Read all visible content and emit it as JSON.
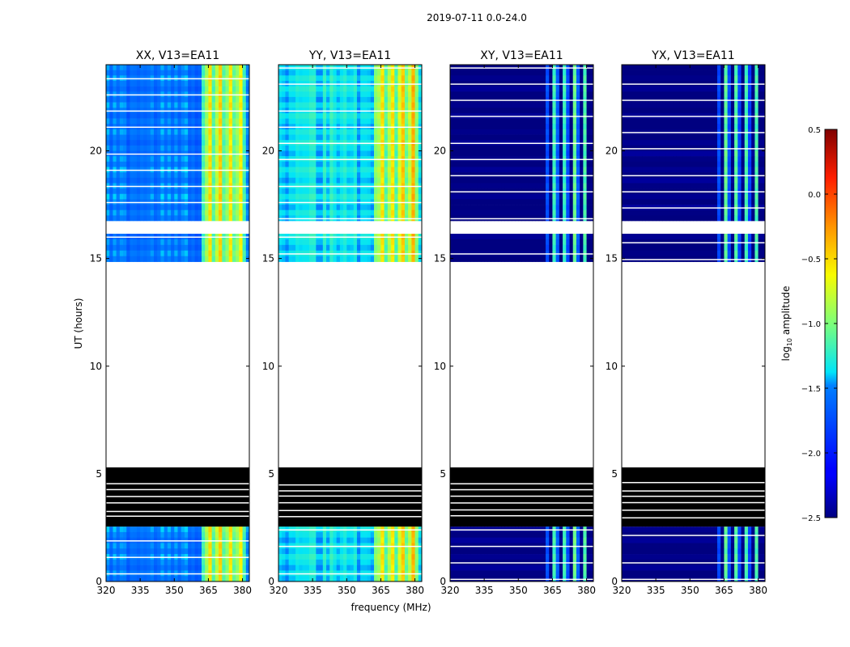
{
  "chart_data": {
    "type": "heatmap",
    "title": "2019-07-11 0.0-24.0",
    "xlabel": "frequency (MHz)",
    "ylabel": "UT (hours)",
    "xlim": [
      320,
      383
    ],
    "ylim": [
      0,
      24
    ],
    "x_ticks": [
      320,
      335,
      350,
      365,
      380
    ],
    "y_ticks": [
      0,
      5,
      10,
      15,
      20
    ],
    "colorbar": {
      "label_prefix": "log",
      "label_sub": "10",
      "label_suffix": " amplitude",
      "range": [
        -2.5,
        0.5
      ],
      "ticks": [
        -2.5,
        -2.0,
        -1.5,
        -1.0,
        -0.5,
        0.0,
        0.5
      ],
      "tick_labels": [
        "−2.5",
        "−2.0",
        "−1.5",
        "−1.0",
        "−0.5",
        "0.0",
        "0.5"
      ],
      "colormap": "jet"
    },
    "time_blocks": [
      {
        "start": 0.0,
        "end": 2.55,
        "state": "data"
      },
      {
        "start": 2.55,
        "end": 5.3,
        "state": "flagged"
      },
      {
        "start": 5.3,
        "end": 14.85,
        "state": "no data"
      },
      {
        "start": 14.85,
        "end": 16.15,
        "state": "data"
      },
      {
        "start": 16.15,
        "end": 16.75,
        "state": "no data"
      },
      {
        "start": 16.75,
        "end": 24.0,
        "state": "data"
      }
    ],
    "panels": [
      {
        "name": "XX",
        "title": "XX, V13=EA11",
        "base_log_amp": -1.55,
        "rfi_log_amp": -0.8,
        "rfi_band_mhz": [
          362,
          382
        ]
      },
      {
        "name": "YY",
        "title": "YY, V13=EA11",
        "base_log_amp": -1.35,
        "rfi_log_amp": -0.7,
        "rfi_band_mhz": [
          362,
          382
        ]
      },
      {
        "name": "XY",
        "title": "XY, V13=EA11",
        "base_log_amp": -2.5,
        "rfi_log_amp": -1.4,
        "rfi_band_mhz": [
          362,
          380
        ]
      },
      {
        "name": "YX",
        "title": "YX, V13=EA11",
        "base_log_amp": -2.5,
        "rfi_log_amp": -1.4,
        "rfi_band_mhz": [
          362,
          380
        ]
      }
    ]
  }
}
